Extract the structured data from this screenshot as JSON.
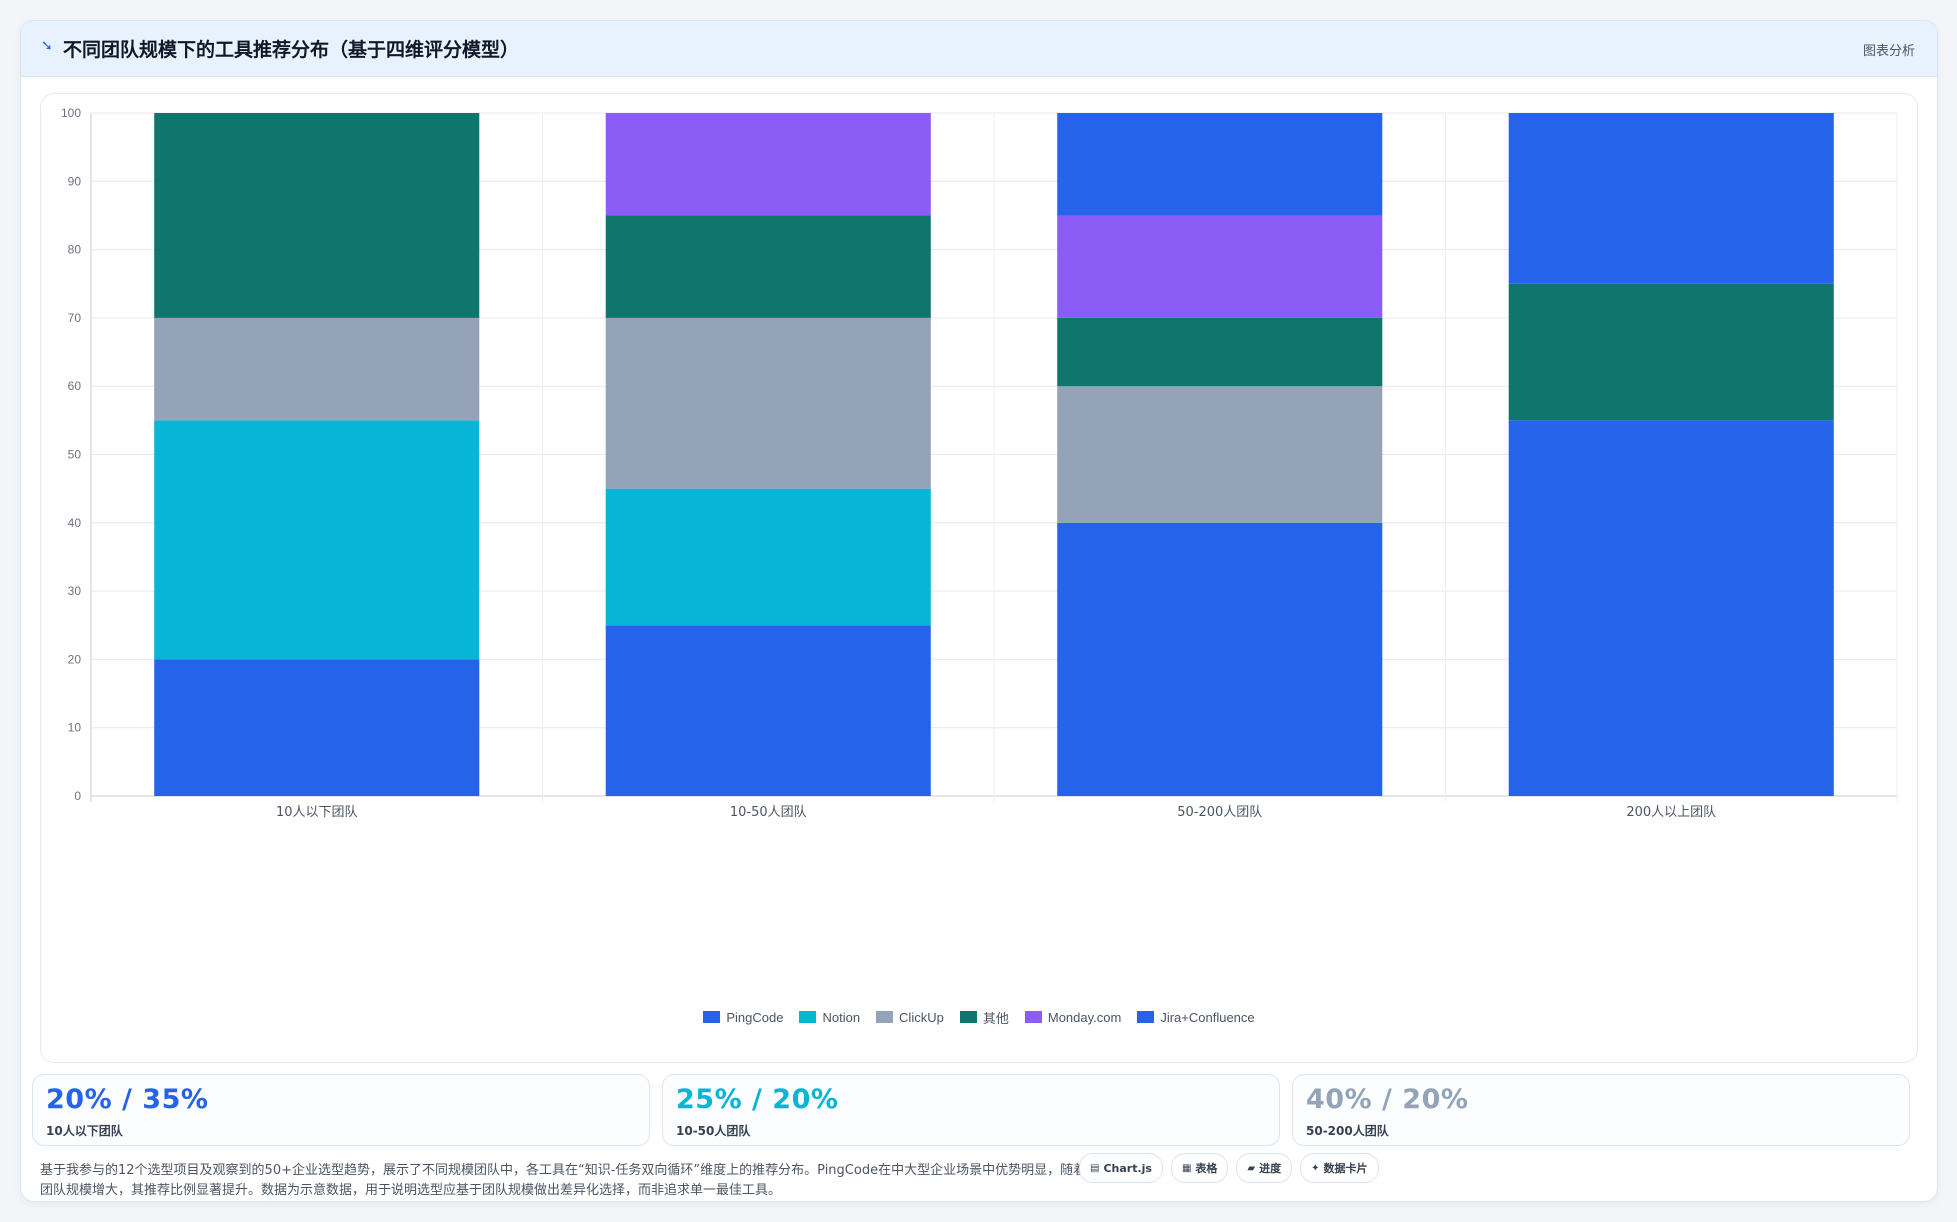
{
  "header": {
    "icon": "trend-icon",
    "title": "不同团队规模下的工具推荐分布（基于四维评分模型）",
    "action_label": "图表分析"
  },
  "chart_data": {
    "type": "bar",
    "stacked": true,
    "categories": [
      "10人以下团队",
      "10-50人团队",
      "50-200人团队",
      "200人以上团队"
    ],
    "series": [
      {
        "name": "PingCode",
        "color": "#2563eb",
        "values": [
          20,
          25,
          40,
          55
        ]
      },
      {
        "name": "Notion",
        "color": "#06b6d4",
        "values": [
          35,
          20,
          0,
          0
        ]
      },
      {
        "name": "ClickUp",
        "color": "#94a3b8",
        "values": [
          15,
          25,
          20,
          0
        ]
      },
      {
        "name": "其他",
        "color": "#0f766e",
        "values": [
          30,
          15,
          10,
          20
        ]
      },
      {
        "name": "Monday.com",
        "color": "#8b5cf6",
        "values": [
          0,
          15,
          15,
          0
        ]
      },
      {
        "name": "Jira+Confluence",
        "color": "#2563eb",
        "values": [
          0,
          0,
          15,
          25
        ]
      }
    ],
    "ylim": [
      0,
      100
    ],
    "yticks": [
      0,
      10,
      20,
      30,
      40,
      50,
      60,
      70,
      80,
      90,
      100
    ],
    "grid": true,
    "legend": "bottom-center"
  },
  "stats": [
    {
      "value": "20% / 35%",
      "label": "10人以下团队",
      "color": "#2563eb"
    },
    {
      "value": "25% / 20%",
      "label": "10-50人团队",
      "color": "#06b6d4"
    },
    {
      "value": "40% / 20%",
      "label": "50-200人团队",
      "color": "#94a3b8"
    }
  ],
  "note": "基于我参与的12个选型项目及观察到的50+企业选型趋势，展示了不同规模团队中，各工具在“知识-任务双向循环”维度上的推荐分布。PingCode在中大型企业场景中优势明显，随着团队规模增大，其推荐比例显著提升。数据为示意数据，用于说明选型应基于团队规模做出差异化选择，而非追求单一最佳工具。",
  "tags": [
    {
      "icon": "chart-icon",
      "glyph": "▤",
      "label": "Chart.js"
    },
    {
      "icon": "table-icon",
      "glyph": "▦",
      "label": "表格"
    },
    {
      "icon": "progress-icon",
      "glyph": "▰",
      "label": "进度"
    },
    {
      "icon": "sparkle-icon",
      "glyph": "✦",
      "label": "数据卡片"
    }
  ]
}
